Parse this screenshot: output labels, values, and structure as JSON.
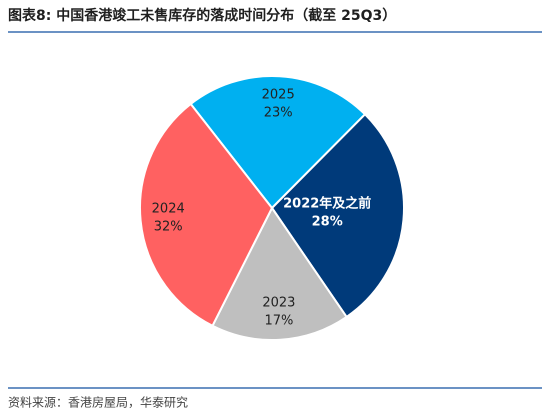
{
  "chart_data": {
    "type": "pie",
    "title": "图表8:  中国香港竣工未售库存的落成时间分布（截至 25Q3）",
    "source": "资料来源：香港房屋局，华泰研究",
    "categories": [
      "2025",
      "2022年及之前",
      "2023",
      "2024"
    ],
    "values": [
      23,
      28,
      17,
      32
    ],
    "value_labels": [
      "23%",
      "28%",
      "17%",
      "32%"
    ],
    "colors": [
      "#00b0f0",
      "#003a7a",
      "#bfbfbf",
      "#ff6161"
    ],
    "label_colors": [
      "#222222",
      "#ffffff",
      "#222222",
      "#222222"
    ]
  }
}
